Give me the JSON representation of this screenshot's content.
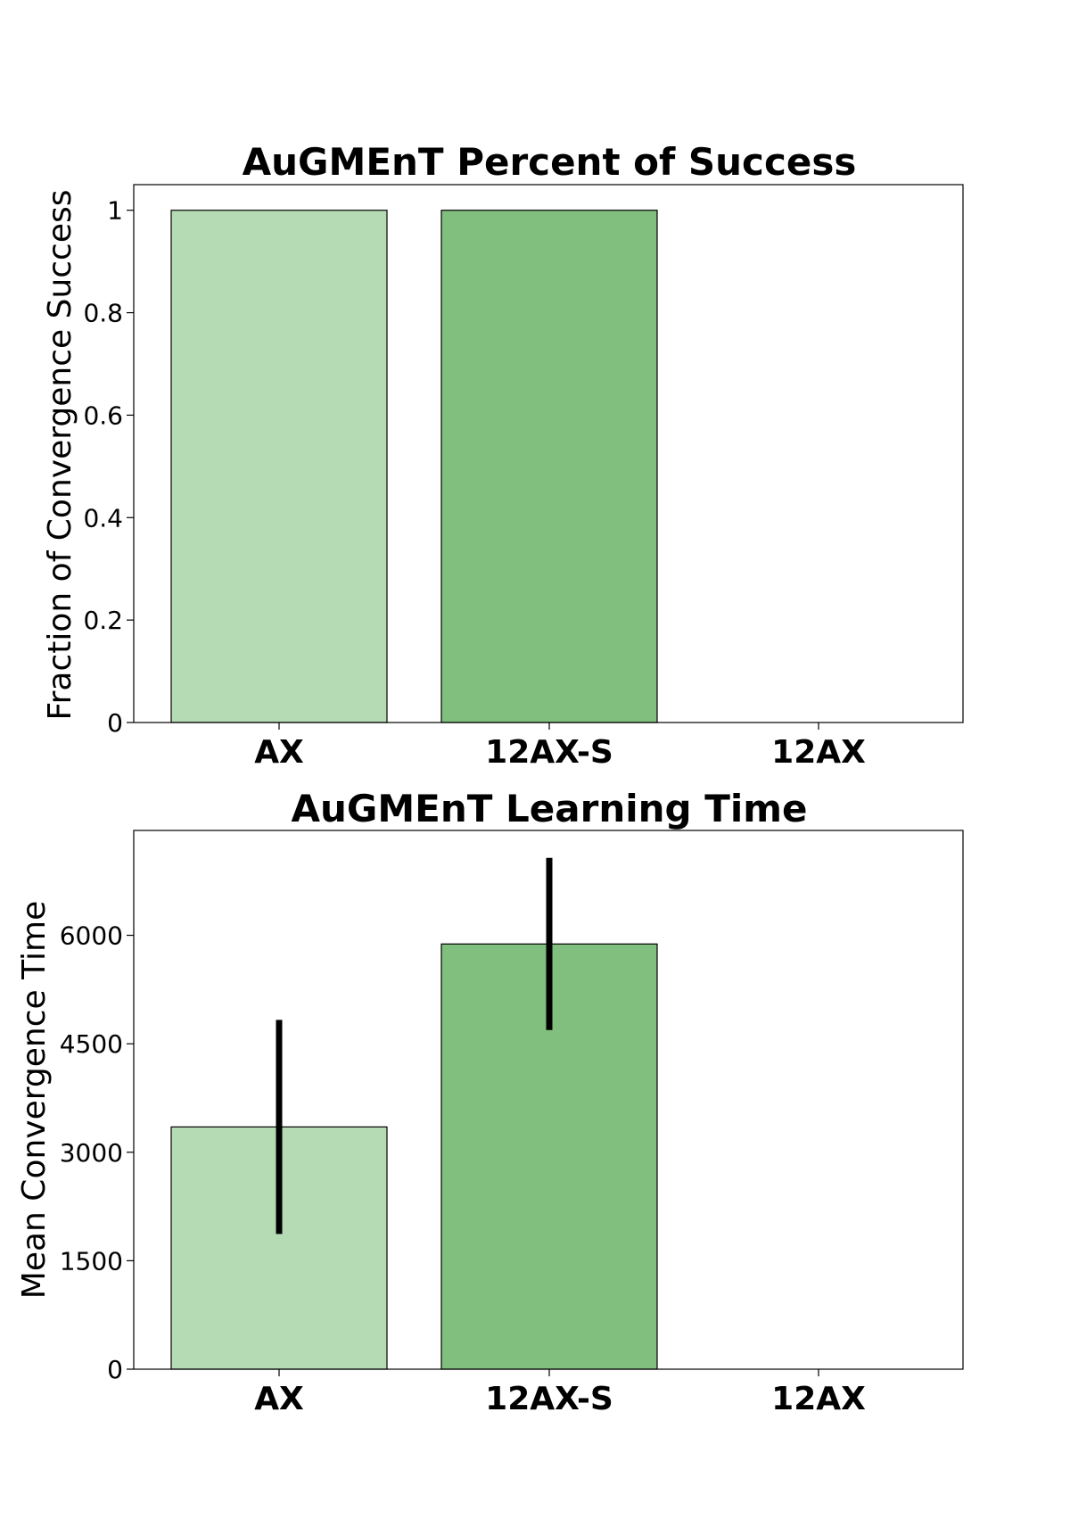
{
  "chart_data": [
    {
      "type": "bar",
      "title": "AuGMEnT Percent of Success",
      "xlabel": "",
      "ylabel": "Fraction of Convergence Success",
      "categories": [
        "AX",
        "12AX-S",
        "12AX"
      ],
      "values": [
        1.0,
        1.0,
        0.0
      ],
      "colors": [
        "#b5dbb5",
        "#80bf7e",
        "#ffffff"
      ],
      "ylim": [
        0,
        1.05
      ],
      "yticks": [
        0,
        0.2,
        0.4,
        0.6,
        0.8,
        1
      ],
      "ytick_labels": [
        "0",
        "0.2",
        "0.4",
        "0.6",
        "0.8",
        "1"
      ],
      "grid": false
    },
    {
      "type": "bar",
      "title": "AuGMEnT Learning Time",
      "xlabel": "",
      "ylabel": "Mean Convergence Time",
      "categories": [
        "AX",
        "12AX-S",
        "12AX"
      ],
      "values": [
        3350,
        5880,
        0
      ],
      "errors": [
        1480,
        1190,
        0
      ],
      "colors": [
        "#b5dbb5",
        "#80bf7e",
        "#ffffff"
      ],
      "ylim": [
        0,
        7450
      ],
      "yticks": [
        0,
        1500,
        3000,
        4500,
        6000
      ],
      "ytick_labels": [
        "0",
        "1500",
        "3000",
        "4500",
        "6000"
      ],
      "grid": false
    }
  ]
}
